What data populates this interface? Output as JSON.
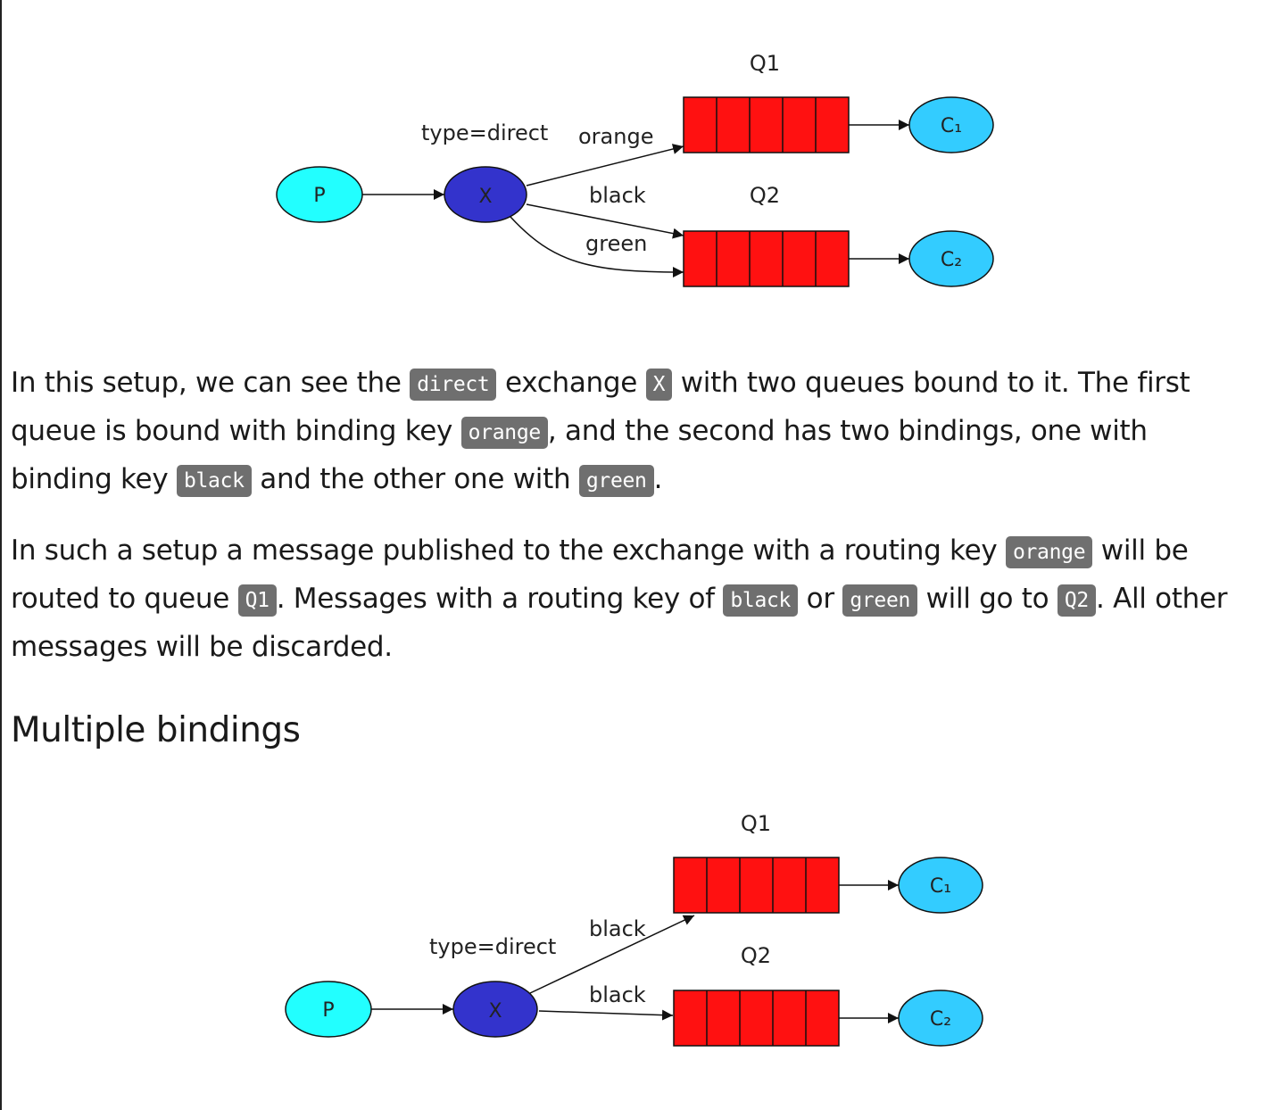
{
  "diagram1": {
    "producer": "P",
    "exchange": "X",
    "exchange_type": "type=direct",
    "queue1": "Q1",
    "queue2": "Q2",
    "consumer1": "C₁",
    "consumer2": "C₂",
    "binding_orange": "orange",
    "binding_black": "black",
    "binding_green": "green"
  },
  "para1": {
    "t1": "In this setup, we can see the ",
    "c1": "direct",
    "t2": " exchange ",
    "c2": "X",
    "t3": " with two queues bound to it. The first",
    "t4": "queue is bound with binding key ",
    "c3": "orange",
    "t5": ", and the second has two bindings, one with",
    "t6": "binding key ",
    "c4": "black",
    "t7": " and the other one with ",
    "c5": "green",
    "t8": "."
  },
  "para2": {
    "t1": "In such a setup a message published to the exchange with a routing key ",
    "c1": "orange",
    "t2": " will be",
    "t3": "routed to queue ",
    "c2": "Q1",
    "t4": ". Messages with a routing key of ",
    "c3": "black",
    "t5": " or ",
    "c4": "green",
    "t6": " will go to ",
    "c5": "Q2",
    "t7": ". All other",
    "t8": "messages will be discarded."
  },
  "heading": "Multiple bindings",
  "diagram2": {
    "producer": "P",
    "exchange": "X",
    "exchange_type": "type=direct",
    "queue1": "Q1",
    "queue2": "Q2",
    "consumer1": "C₁",
    "consumer2": "C₂",
    "binding_black_1": "black",
    "binding_black_2": "black"
  },
  "colors": {
    "producer": "#22ffff",
    "exchange": "#3333cc",
    "queue": "#ff1111",
    "consumer": "#33ccff",
    "code_bg": "#6f6f6f"
  }
}
